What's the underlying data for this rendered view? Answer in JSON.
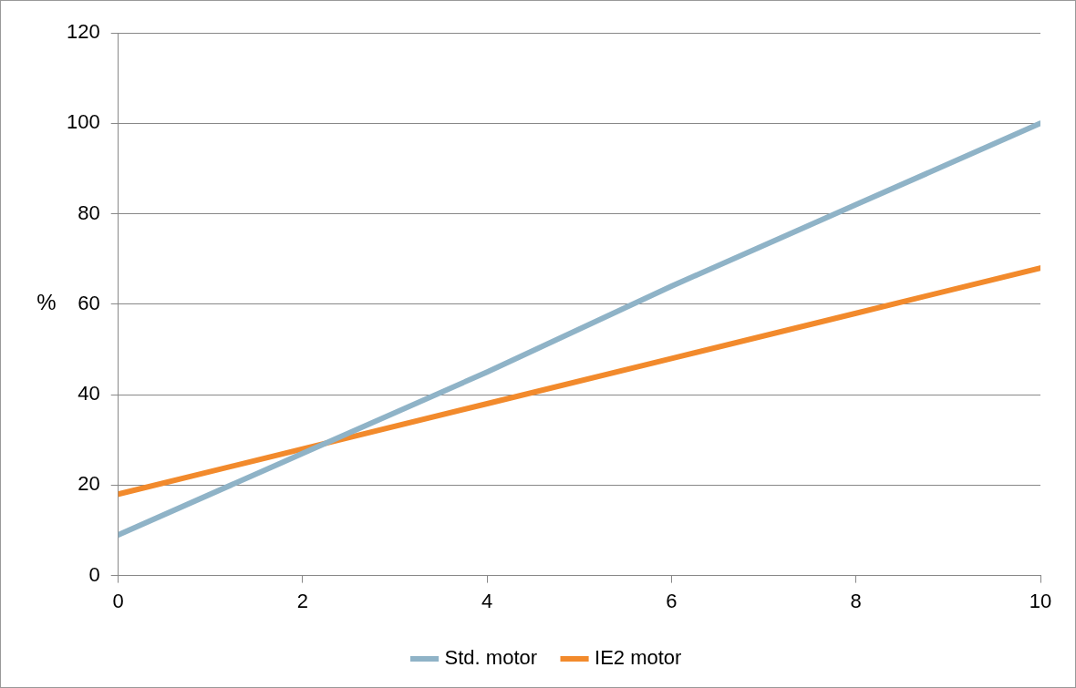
{
  "chart_data": {
    "type": "line",
    "ylabel": "%",
    "xlim": [
      0,
      10
    ],
    "xticks": [
      0,
      2,
      4,
      6,
      8,
      10
    ],
    "ylim": [
      0,
      120
    ],
    "yticks": [
      0,
      20,
      40,
      60,
      80,
      100,
      120
    ],
    "grid": "y",
    "legend": "bottom",
    "marker": "none",
    "line_style": "solid",
    "series": [
      {
        "name": "Std. motor",
        "color": "#8fb3c7",
        "x": [
          0,
          2,
          4,
          6,
          8,
          10
        ],
        "values": [
          9,
          27,
          45,
          64,
          82,
          100
        ]
      },
      {
        "name": "IE2 motor",
        "color": "#f28a2c",
        "x": [
          0,
          2,
          4,
          6,
          8,
          10
        ],
        "values": [
          18,
          28,
          38,
          48,
          58,
          68
        ]
      }
    ]
  }
}
